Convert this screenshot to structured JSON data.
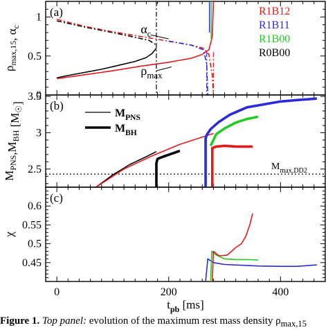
{
  "chart_data": [
    {
      "type": "line",
      "panel_label": "(a)",
      "xlim": [
        -20,
        480
      ],
      "ylim": [
        0,
        1.2
      ],
      "ylabel_html": "ρ<sub>max,15</sub>, α<sub>c</sub>",
      "yticks": [
        "0",
        "0.5",
        "1"
      ],
      "legend": [
        {
          "name": "R1B12",
          "color": "#e31a1c"
        },
        {
          "name": "R1B11",
          "color": "#2a2adb"
        },
        {
          "name": "R1B00",
          "color": "#22cc22"
        },
        {
          "name": "R0B00",
          "color": "#000000"
        }
      ],
      "annotations": [
        {
          "text": "α",
          "sub": "c",
          "x": 150,
          "y": 0.79
        },
        {
          "text": "ρ",
          "sub": "max",
          "x": 150,
          "y": 0.26
        }
      ],
      "series": [
        {
          "name": "R0B00",
          "quantity": "rho_max",
          "style": "solid",
          "color": "#000000",
          "x": [
            0,
            20,
            50,
            80,
            110,
            140,
            160,
            170,
            178
          ],
          "y": [
            0.22,
            0.25,
            0.29,
            0.33,
            0.38,
            0.43,
            0.48,
            0.53,
            0.6
          ]
        },
        {
          "name": "R1B12",
          "quantity": "rho_max",
          "style": "solid",
          "color": "#e31a1c",
          "x": [
            0,
            50,
            100,
            150,
            200,
            240,
            260,
            272,
            278,
            280
          ],
          "y": [
            0.21,
            0.26,
            0.31,
            0.37,
            0.42,
            0.47,
            0.52,
            0.58,
            0.75,
            1.2
          ]
        },
        {
          "name": "R0B00",
          "quantity": "alpha_c",
          "style": "dashdot",
          "color": "#000000",
          "x": [
            0,
            50,
            100,
            140,
            165,
            178
          ],
          "y": [
            0.95,
            0.87,
            0.8,
            0.74,
            0.7,
            0.64
          ]
        },
        {
          "name": "R1B12",
          "quantity": "alpha_c",
          "style": "dashdot",
          "color": "#e31a1c",
          "x": [
            0,
            50,
            100,
            150,
            200,
            240,
            262,
            272,
            278,
            280
          ],
          "y": [
            0.97,
            0.88,
            0.81,
            0.75,
            0.69,
            0.64,
            0.6,
            0.52,
            0.25,
            0.0
          ]
        },
        {
          "name": "R1B11",
          "quantity": "alpha_c",
          "style": "dashdot",
          "color": "#2a2adb",
          "x": [
            200,
            240,
            262,
            268,
            270
          ],
          "y": [
            0.69,
            0.64,
            0.58,
            0.4,
            0.0
          ]
        }
      ]
    },
    {
      "type": "line",
      "panel_label": "(b)",
      "xlim": [
        -20,
        480
      ],
      "ylim": [
        2.25,
        3.52
      ],
      "ylabel_html": "M<sub>PNS</sub>,M<sub>BH</sub> [M<sub>☉</sub>]",
      "yticks": [
        "2.5",
        "3",
        "3.5"
      ],
      "legend": [
        {
          "name": "M",
          "sub": "PNS",
          "style": "thin"
        },
        {
          "name": "M",
          "sub": "BH",
          "style": "thick"
        }
      ],
      "reference_line": {
        "text": "M",
        "sub": "max,DD2",
        "y": 2.43
      },
      "series": [
        {
          "name": "R0B00",
          "quantity": "M_PNS",
          "color": "#000000",
          "x": [
            70,
            100,
            130,
            160,
            178
          ],
          "y": [
            2.25,
            2.42,
            2.56,
            2.67,
            2.74
          ]
        },
        {
          "name": "R1B12",
          "quantity": "M_PNS",
          "color": "#e31a1c",
          "x": [
            70,
            120,
            170,
            220,
            260,
            280
          ],
          "y": [
            2.25,
            2.5,
            2.68,
            2.84,
            2.94,
            2.99
          ]
        },
        {
          "name": "R0B00",
          "quantity": "M_BH",
          "color": "#000000",
          "x": [
            178,
            178,
            180,
            190,
            205,
            220
          ],
          "y": [
            2.25,
            2.58,
            2.64,
            2.67,
            2.71,
            2.75
          ]
        },
        {
          "name": "R1B11",
          "quantity": "M_BH",
          "color": "#2a2adb",
          "x": [
            266,
            266,
            268,
            275,
            290,
            310,
            340,
            370,
            400,
            430,
            465
          ],
          "y": [
            2.25,
            2.92,
            2.97,
            3.05,
            3.15,
            3.25,
            3.35,
            3.39,
            3.43,
            3.45,
            3.47
          ]
        },
        {
          "name": "R1B00",
          "quantity": "M_BH",
          "color": "#22cc22",
          "x": [
            275,
            285,
            300,
            320,
            340,
            360
          ],
          "y": [
            2.82,
            2.98,
            3.06,
            3.14,
            3.19,
            3.22
          ]
        },
        {
          "name": "R1B12",
          "quantity": "M_BH",
          "color": "#e31a1c",
          "x": [
            278,
            278,
            285,
            300,
            320,
            350
          ],
          "y": [
            2.25,
            2.79,
            2.81,
            2.82,
            2.81,
            2.81
          ]
        }
      ]
    },
    {
      "type": "line",
      "panel_label": "(c)",
      "xlim": [
        -20,
        480
      ],
      "ylim": [
        0.4,
        0.65
      ],
      "xlabel_html": "t<sub>pb</sub> [ms]",
      "ylabel_html": "χ",
      "yticks": [
        "0.45",
        "0.5",
        "0.55",
        "0.6"
      ],
      "xticks": [
        0,
        200,
        400
      ],
      "series": [
        {
          "name": "R1B11",
          "color": "#2a2adb",
          "x": [
            266,
            270,
            280,
            300,
            330,
            360,
            400,
            430,
            465
          ],
          "y": [
            0.4,
            0.46,
            0.45,
            0.445,
            0.443,
            0.441,
            0.44,
            0.44,
            0.444
          ]
        },
        {
          "name": "R1B00",
          "color": "#22cc22",
          "x": [
            275,
            277,
            285,
            300,
            320,
            340,
            360
          ],
          "y": [
            0.4,
            0.48,
            0.47,
            0.46,
            0.458,
            0.458,
            0.457
          ]
        },
        {
          "name": "R1B12",
          "color": "#e31a1c",
          "x": [
            278,
            280,
            290,
            305,
            320,
            330,
            338,
            345,
            350
          ],
          "y": [
            0.4,
            0.48,
            0.468,
            0.47,
            0.49,
            0.5,
            0.52,
            0.55,
            0.58
          ]
        }
      ]
    }
  ],
  "caption": {
    "label": "Figure 1.",
    "emph": "Top panel:",
    "text": " evolution of the maximum rest mass density ρ",
    "sub": "max,15"
  }
}
